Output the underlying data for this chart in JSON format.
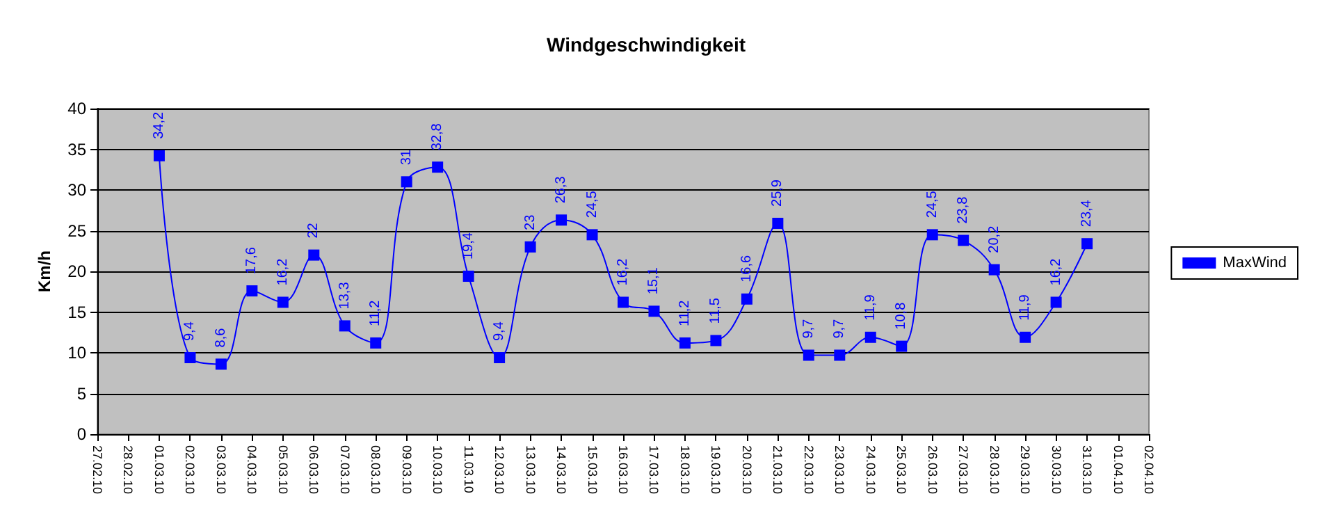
{
  "chart_data": {
    "type": "line",
    "title": "Windgeschwindigkeit",
    "ylabel": "Km/h",
    "categories": [
      "27.02.10",
      "28.02.10",
      "01.03.10",
      "02.03.10",
      "03.03.10",
      "04.03.10",
      "05.03.10",
      "06.03.10",
      "07.03.10",
      "08.03.10",
      "09.03.10",
      "10.03.10",
      "11.03.10",
      "12.03.10",
      "13.03.10",
      "14.03.10",
      "15.03.10",
      "16.03.10",
      "17.03.10",
      "18.03.10",
      "19.03.10",
      "20.03.10",
      "21.03.10",
      "22.03.10",
      "23.03.10",
      "24.03.10",
      "25.03.10",
      "26.03.10",
      "27.03.10",
      "28.03.10",
      "29.03.10",
      "30.03.10",
      "31.03.10",
      "01.04.10",
      "02.04.10"
    ],
    "series": [
      {
        "name": "MaxWind",
        "color": "#0000ff",
        "values": [
          null,
          null,
          34.2,
          9.4,
          8.6,
          17.6,
          16.2,
          22,
          13.3,
          11.2,
          31,
          32.8,
          19.4,
          9.4,
          23,
          26.3,
          24.5,
          16.2,
          15.1,
          11.2,
          11.5,
          16.6,
          25.9,
          9.7,
          9.7,
          11.9,
          10.8,
          24.5,
          23.8,
          20.2,
          11.9,
          16.2,
          23.4,
          null,
          null
        ],
        "value_labels": [
          null,
          null,
          "34,2",
          "9,4",
          "8,6",
          "17,6",
          "16,2",
          "22",
          "13,3",
          "11,2",
          "31",
          "32,8",
          "19,4",
          "9,4",
          "23",
          "26,3",
          "24,5",
          "16,2",
          "15,1",
          "11,2",
          "11,5",
          "16,6",
          "25,9",
          "9,7",
          "9,7",
          "11,9",
          "10,8",
          "24,5",
          "23,8",
          "20,2",
          "11,9",
          "16,2",
          "23,4",
          null,
          null
        ]
      }
    ],
    "ylim": [
      0,
      40
    ],
    "yticks": [
      0,
      5,
      10,
      15,
      20,
      25,
      30,
      35,
      40
    ],
    "grid": "y",
    "legend": "right",
    "marker": "square",
    "line_style": "solid"
  }
}
